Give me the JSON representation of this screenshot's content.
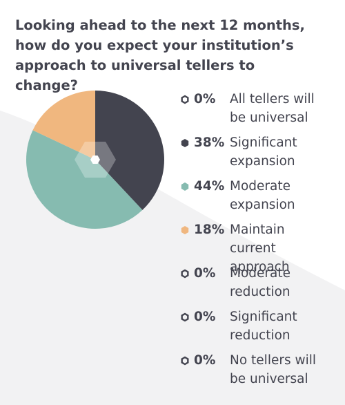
{
  "title": "Looking ahead to the next 12 months, how do you expect your institution’s approach to universal tellers to change?",
  "colors": {
    "text": "#43444f",
    "significant_expansion": "#43444f",
    "moderate_expansion": "#86bbb0",
    "maintain_current": "#f0b77f",
    "zero_outline": "#43444f",
    "background_swoosh": "#f2f2f3"
  },
  "chart_data": {
    "type": "pie",
    "title": "Looking ahead to the next 12 months, how do you expect your institution’s approach to universal tellers to change?",
    "legend_position": "right",
    "slices": [
      {
        "label": "All tellers will be universal",
        "value": 0,
        "pct_label": "0%",
        "color": "#ffffff",
        "icon": "hexagon-outline-icon"
      },
      {
        "label": "Significant expansion",
        "value": 38,
        "pct_label": "38%",
        "color": "#43444f",
        "icon": "hexagon-filled-icon"
      },
      {
        "label": "Moderate expansion",
        "value": 44,
        "pct_label": "44%",
        "color": "#86bbb0",
        "icon": "hexagon-filled-icon"
      },
      {
        "label": "Maintain current approach",
        "value": 18,
        "pct_label": "18%",
        "color": "#f0b77f",
        "icon": "hexagon-filled-icon"
      },
      {
        "label": "Moderate reduction",
        "value": 0,
        "pct_label": "0%",
        "color": "#ffffff",
        "icon": "hexagon-outline-icon"
      },
      {
        "label": "Significant reduction",
        "value": 0,
        "pct_label": "0%",
        "color": "#ffffff",
        "icon": "hexagon-outline-icon"
      },
      {
        "label": "No tellers will be universal",
        "value": 0,
        "pct_label": "0%",
        "color": "#ffffff",
        "icon": "hexagon-outline-icon"
      }
    ]
  }
}
